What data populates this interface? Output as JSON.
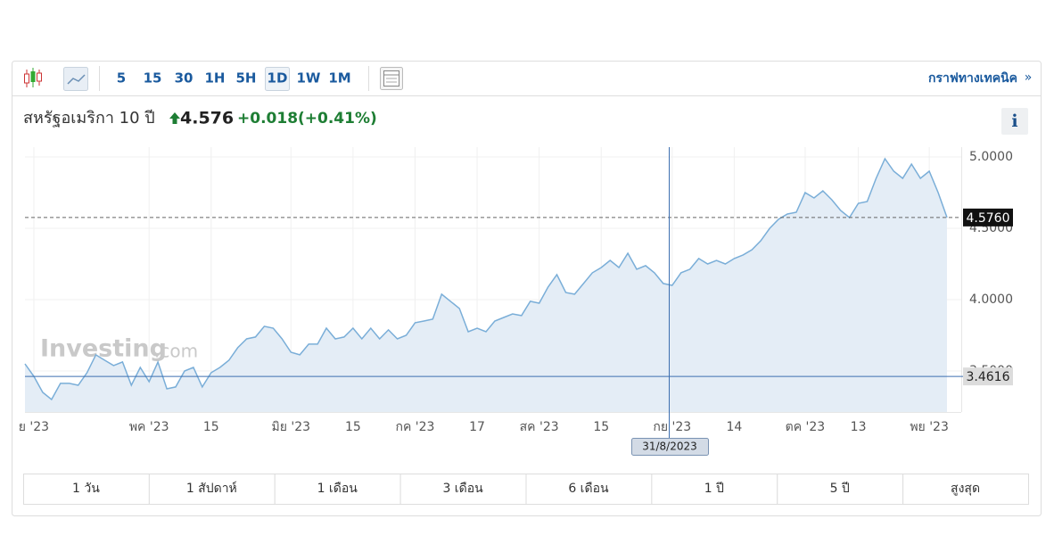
{
  "toolbar": {
    "intervals": [
      "5",
      "15",
      "30",
      "1H",
      "5H",
      "1D",
      "1W",
      "1M"
    ],
    "technical_link": "กราฟทางเทคนิค",
    "more": "»"
  },
  "header": {
    "name": "สหรัฐอเมริกา 10 ปี",
    "price": "4.576",
    "change": "+0.018",
    "change_percent": "(+0.41%)",
    "info": "i"
  },
  "chart_data": {
    "type": "line",
    "categories": [
      null,
      "ย '23",
      null,
      null,
      null,
      null,
      null,
      null,
      null,
      null,
      null,
      null,
      null,
      null,
      "พค '23",
      null,
      null,
      null,
      null,
      null,
      null,
      "15",
      null,
      null,
      null,
      null,
      null,
      null,
      null,
      null,
      "มิย '23",
      null,
      null,
      null,
      null,
      null,
      null,
      "15",
      null,
      null,
      null,
      null,
      null,
      null,
      "กค '23",
      null,
      null,
      null,
      null,
      null,
      null,
      "17",
      null,
      null,
      null,
      null,
      null,
      null,
      "สค '23",
      null,
      null,
      null,
      null,
      null,
      null,
      "15",
      null,
      null,
      null,
      null,
      null,
      null,
      null,
      "กย '23",
      null,
      null,
      null,
      null,
      null,
      null,
      "14",
      null,
      null,
      null,
      null,
      null,
      null,
      null,
      "ตค '23",
      null,
      null,
      null,
      null,
      null,
      "13",
      null,
      null,
      null,
      null,
      null,
      null,
      null,
      "พย '23",
      null,
      null
    ],
    "values": [
      3.55,
      3.463,
      3.35,
      3.3,
      3.413,
      3.413,
      3.4,
      3.488,
      3.613,
      3.575,
      3.538,
      3.563,
      3.4,
      3.525,
      3.425,
      3.563,
      3.375,
      3.388,
      3.5,
      3.525,
      3.388,
      3.488,
      3.525,
      3.575,
      3.663,
      3.725,
      3.738,
      3.813,
      3.8,
      3.725,
      3.631,
      3.613,
      3.688,
      3.688,
      3.8,
      3.725,
      3.738,
      3.8,
      3.725,
      3.8,
      3.725,
      3.788,
      3.725,
      3.75,
      3.838,
      3.85,
      3.863,
      4.038,
      3.988,
      3.938,
      3.775,
      3.8,
      3.775,
      3.85,
      3.875,
      3.9,
      3.888,
      3.988,
      3.975,
      4.088,
      4.175,
      4.05,
      4.038,
      4.113,
      4.188,
      4.225,
      4.275,
      4.225,
      4.325,
      4.213,
      4.238,
      4.188,
      4.113,
      4.1,
      4.188,
      4.213,
      4.288,
      4.25,
      4.275,
      4.25,
      4.288,
      4.313,
      4.35,
      4.413,
      4.5,
      4.563,
      4.6,
      4.613,
      4.75,
      4.713,
      4.763,
      4.7,
      4.625,
      4.575,
      4.675,
      4.688,
      4.85,
      4.988,
      4.9,
      4.85,
      4.95,
      4.85,
      4.9,
      4.75,
      4.576
    ],
    "color": "#7aaed8",
    "fill_color": "#e4edf6",
    "ylim": [
      3.2125,
      5.069
    ],
    "yticks": [
      {
        "value": 3.5,
        "label": "3.5000"
      },
      {
        "value": 4,
        "label": "4.0000"
      },
      {
        "value": 4.5,
        "label": "4.5000"
      },
      {
        "value": 5,
        "label": "5.0000"
      }
    ],
    "grid": true,
    "reference_line": {
      "value": 4.576,
      "label": "4.5760"
    },
    "crosshair": {
      "x_label": "31/8/2023",
      "y": 3.4616
    },
    "watermark": [
      "Investing",
      ".com"
    ]
  },
  "ranges": [
    "1 วัน",
    "1 สัปดาห์",
    "1 เดือน",
    "3 เดือน",
    "6 เดือน",
    "1 ปี",
    "5 ปี",
    "สูงสุด"
  ]
}
